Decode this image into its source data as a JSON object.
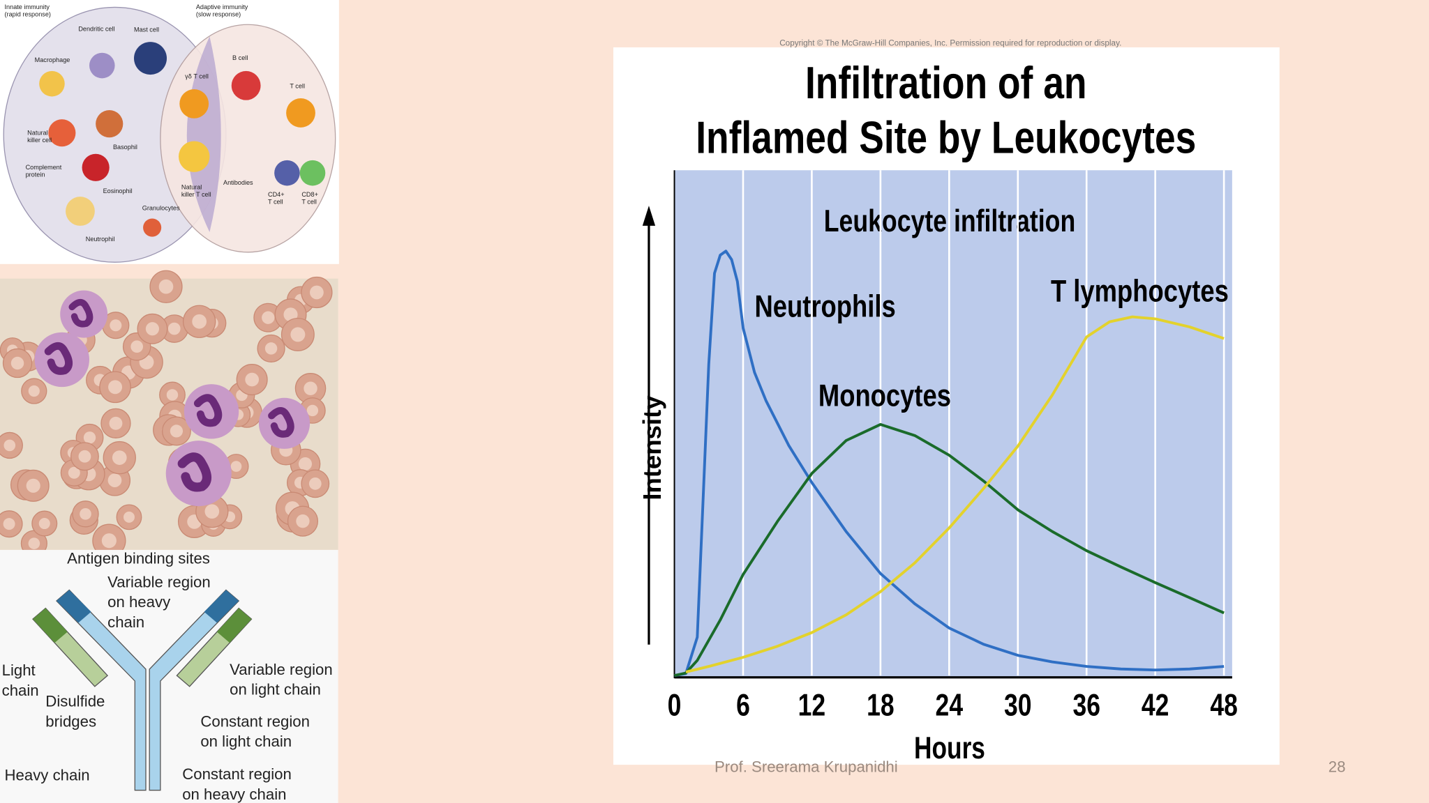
{
  "chart_data": {
    "type": "line",
    "copyright": "Copyright © The McGraw-Hill Companies, Inc. Permission required for reproduction or display.",
    "title": [
      "Infiltration of an",
      "Inflamed Site by Leukocytes"
    ],
    "subtitle": "Leukocyte infiltration",
    "xlabel": "Hours",
    "ylabel": "Intensity",
    "xlim": [
      0,
      48
    ],
    "xticks": [
      0,
      6,
      12,
      18,
      24,
      30,
      36,
      42,
      48
    ],
    "ylim": [
      0,
      100
    ],
    "grid": true,
    "series": [
      {
        "name": "Neutrophils",
        "color": "#2f6fc4",
        "x": [
          0,
          1,
          2,
          2.6,
          3,
          3.5,
          4,
          4.5,
          5,
          5.5,
          6,
          7,
          8,
          10,
          12,
          15,
          18,
          21,
          24,
          27,
          30,
          33,
          36,
          39,
          42,
          45,
          48
        ],
        "values": [
          0,
          0.4,
          7.6,
          40,
          61.6,
          79.6,
          83.2,
          84,
          82.3,
          78,
          68.8,
          60,
          54.4,
          45.5,
          38.2,
          28.5,
          20.2,
          14.2,
          9.4,
          6.2,
          4,
          2.7,
          1.8,
          1.3,
          1.1,
          1.3,
          1.8
        ]
      },
      {
        "name": "Monocytes",
        "color": "#1a6b2a",
        "x": [
          0,
          1,
          2,
          4,
          6,
          9,
          12,
          15,
          18,
          21,
          24,
          27,
          30,
          33,
          36,
          39,
          42,
          45,
          48
        ],
        "values": [
          0,
          0.5,
          3,
          11,
          20,
          30.5,
          40,
          46.5,
          49.7,
          47.5,
          43.6,
          38.5,
          32.8,
          28.5,
          24.7,
          21.5,
          18.4,
          15.4,
          12.4
        ]
      },
      {
        "name": "T lymphocytes",
        "color": "#e3d22c",
        "x": [
          1,
          3,
          6,
          9,
          12,
          15,
          18,
          21,
          24,
          27,
          30,
          33,
          36,
          38,
          40,
          42,
          45,
          48
        ],
        "values": [
          0.7,
          1.8,
          3.6,
          5.8,
          8.5,
          12,
          16.6,
          22.3,
          29.2,
          37,
          45.4,
          55.5,
          67,
          70,
          71,
          70.6,
          69,
          66.7
        ]
      }
    ]
  },
  "immune_diagram": {
    "labels": [
      [
        "Innate immunity",
        "(rapid response)"
      ],
      [
        "Adaptive immunity",
        "(slow response)"
      ],
      [
        "Dendritic cell"
      ],
      [
        "Mast cell"
      ],
      [
        "Macrophage"
      ],
      [
        "B cell"
      ],
      [
        "γδ T cell"
      ],
      [
        "T cell"
      ],
      [
        "Natural",
        "killer cell"
      ],
      [
        "Basophil"
      ],
      [
        "Complement",
        "protein"
      ],
      [
        "Eosinophil"
      ],
      [
        "Natural",
        "killer T cell"
      ],
      [
        "Antibodies"
      ],
      [
        "CD4+",
        "T cell"
      ],
      [
        "CD8+",
        "T cell"
      ],
      [
        "Granulocytes"
      ],
      [
        "Neutrophil"
      ]
    ]
  },
  "antibody_diagram": {
    "labels": [
      [
        "Antigen binding sites"
      ],
      [
        "Variable region",
        "on heavy",
        "chain"
      ],
      [
        "Light",
        "chain"
      ],
      [
        "Variable region",
        "on light chain"
      ],
      [
        "Disulfide",
        "bridges"
      ],
      [
        "Constant region",
        "on light chain"
      ],
      [
        "Heavy chain"
      ],
      [
        "Constant region",
        "on heavy chain"
      ]
    ]
  },
  "footer": {
    "author": "Prof. Sreerama Krupanidhi",
    "page": "28"
  }
}
